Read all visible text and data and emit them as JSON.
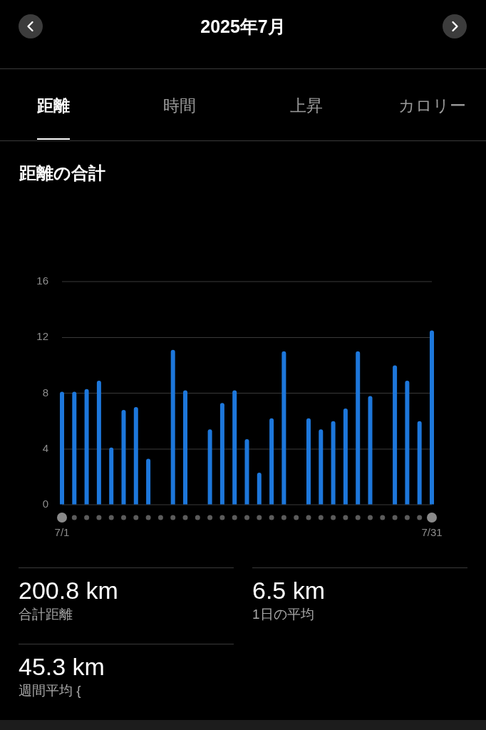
{
  "chart_data": {
    "type": "bar",
    "title": "2025年7月",
    "subtitle": "距離の合計",
    "categories": [
      "7/1",
      null,
      null,
      null,
      null,
      null,
      null,
      null,
      null,
      null,
      null,
      null,
      null,
      null,
      null,
      null,
      null,
      null,
      null,
      null,
      null,
      null,
      null,
      null,
      null,
      null,
      null,
      null,
      null,
      null,
      "7/31"
    ],
    "values": [
      8.1,
      8.1,
      8.3,
      8.9,
      4.1,
      6.8,
      7.0,
      3.3,
      0,
      11.1,
      8.2,
      0,
      5.4,
      7.3,
      8.2,
      4.7,
      2.3,
      6.2,
      11.0,
      0,
      6.2,
      5.4,
      6.0,
      6.9,
      11.0,
      7.8,
      0,
      10.0,
      8.9,
      6.0,
      12.5
    ],
    "color": "#1d77db",
    "ylim": [
      0,
      16
    ],
    "yticks": [
      0,
      4,
      8,
      12,
      16
    ],
    "grid": "y",
    "annotations": [
      "距離",
      "時間",
      "上昇",
      "カロリー",
      "200.8 km",
      "合計距離",
      "6.5 km",
      "1日の平均",
      "45.3 km",
      "週間平均 {"
    ]
  }
}
